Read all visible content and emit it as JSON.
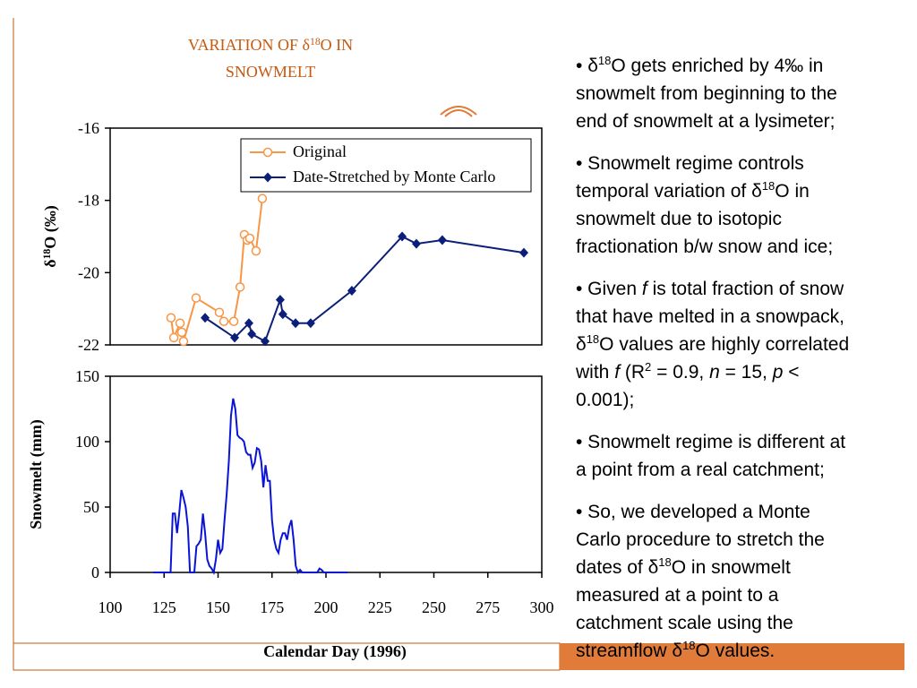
{
  "title": [
    [
      "VARIATION OF δ",
      {
        "sup": "18"
      },
      "O IN"
    ],
    [
      "SNOWMELT"
    ]
  ],
  "chart_data": [
    {
      "type": "line",
      "ylabel": [
        "δ",
        {
          "sup": "18"
        },
        "O (‰)"
      ],
      "xlim": [
        100,
        300
      ],
      "ylim": [
        -22,
        -16
      ],
      "yticks": [
        -16,
        -18,
        -20,
        -22
      ],
      "legend": "top-right",
      "series": [
        {
          "name": "Original",
          "color": "#f79646",
          "marker": "circle-open",
          "x": [
            128.2,
            129.5,
            132.4,
            133.2,
            134,
            139.8,
            150.6,
            152.7,
            157.3,
            160.2,
            162.2,
            163.5,
            164.7,
            167.6,
            170.5
          ],
          "values": [
            -21.25,
            -21.8,
            -21.4,
            -21.65,
            -21.9,
            -20.7,
            -21.1,
            -21.35,
            -21.35,
            -20.4,
            -18.95,
            -19.1,
            -19.05,
            -19.4,
            -17.95
          ]
        },
        {
          "name": "Date-Stretched by Monte Carlo",
          "color": "#0b1f7a",
          "marker": "diamond",
          "x": [
            144,
            157.7,
            164.3,
            165.6,
            171.8,
            178.8,
            180,
            185.9,
            192.9,
            212,
            235.3,
            241.9,
            253.9,
            291.7
          ],
          "values": [
            -21.25,
            -21.8,
            -21.4,
            -21.7,
            -21.9,
            -20.75,
            -21.15,
            -21.4,
            -21.4,
            -20.5,
            -19.0,
            -19.2,
            -19.1,
            -19.45
          ]
        }
      ]
    },
    {
      "type": "line",
      "ylabel": [
        "Snowmelt (mm)"
      ],
      "xlabel": "Calendar Day (1996)",
      "xlim": [
        100,
        300
      ],
      "xticks": [
        100,
        125,
        150,
        175,
        200,
        225,
        250,
        275,
        300
      ],
      "ylim": [
        0,
        150
      ],
      "yticks": [
        0,
        50,
        100,
        150
      ],
      "series": [
        {
          "color": "#0a14d8",
          "x": [
            120,
            128,
            129,
            130,
            131,
            132,
            133,
            134,
            135,
            136,
            137,
            138,
            139,
            140,
            141,
            142,
            143,
            144,
            145,
            146,
            147,
            148,
            149,
            150,
            151,
            152,
            153,
            154,
            155,
            156,
            157,
            158,
            159,
            160,
            161,
            162,
            163,
            164,
            165,
            166,
            167,
            168,
            169,
            170,
            171,
            172,
            173,
            174,
            175,
            176,
            177,
            178,
            179,
            180,
            181,
            182,
            183,
            184,
            185,
            186,
            187,
            188,
            189,
            190,
            196,
            197,
            198,
            199,
            210
          ],
          "values": [
            0,
            0,
            45,
            45,
            30,
            45,
            63,
            57,
            50,
            35,
            0,
            0,
            0,
            20,
            22,
            25,
            45,
            30,
            10,
            5,
            3,
            0,
            10,
            25,
            15,
            18,
            40,
            60,
            85,
            120,
            133,
            125,
            105,
            103,
            102,
            100,
            92,
            90,
            90,
            80,
            84,
            95,
            94,
            85,
            65,
            82,
            70,
            70,
            40,
            25,
            18,
            15,
            25,
            30,
            30,
            25,
            35,
            40,
            25,
            5,
            0,
            2,
            0,
            0,
            0,
            3,
            2,
            0,
            0
          ]
        }
      ]
    }
  ],
  "bullets": [
    [
      [
        "• ",
        "δ",
        {
          "sup": "18"
        },
        "O gets enriched by 4‰ in"
      ],
      [
        "snowmelt from beginning to the"
      ],
      [
        "end of snowmelt at a lysimeter;"
      ]
    ],
    [
      [
        "• Snowmelt regime controls"
      ],
      [
        "temporal variation of ",
        "δ",
        {
          "sup": "18"
        },
        "O in"
      ],
      [
        "snowmelt due to isotopic"
      ],
      [
        "fractionation b/w snow and ice;"
      ]
    ],
    [
      [
        "• Given ",
        {
          "i": "f"
        },
        " is total fraction of snow"
      ],
      [
        "that have melted in a snowpack,"
      ],
      [
        "δ",
        {
          "sup": "18"
        },
        "O values are highly correlated"
      ],
      [
        "with ",
        {
          "i": "f"
        },
        " (R",
        {
          "sup": "2"
        },
        " = 0.9, ",
        {
          "i": "n"
        },
        " = 15, ",
        {
          "i": "p"
        },
        " <"
      ],
      [
        "0.001);"
      ]
    ],
    [
      [
        "• Snowmelt regime is different at"
      ],
      [
        "a point from a real catchment;"
      ]
    ],
    [
      [
        "• So, we developed a Monte"
      ],
      [
        "Carlo procedure to stretch the"
      ],
      [
        "dates of ",
        "δ",
        {
          "sup": "18"
        },
        "O in snowmelt"
      ],
      [
        "measured at a point to a"
      ],
      [
        "catchment scale using the"
      ],
      [
        "streamflow ",
        "δ",
        {
          "sup": "18"
        },
        "O values."
      ]
    ]
  ]
}
